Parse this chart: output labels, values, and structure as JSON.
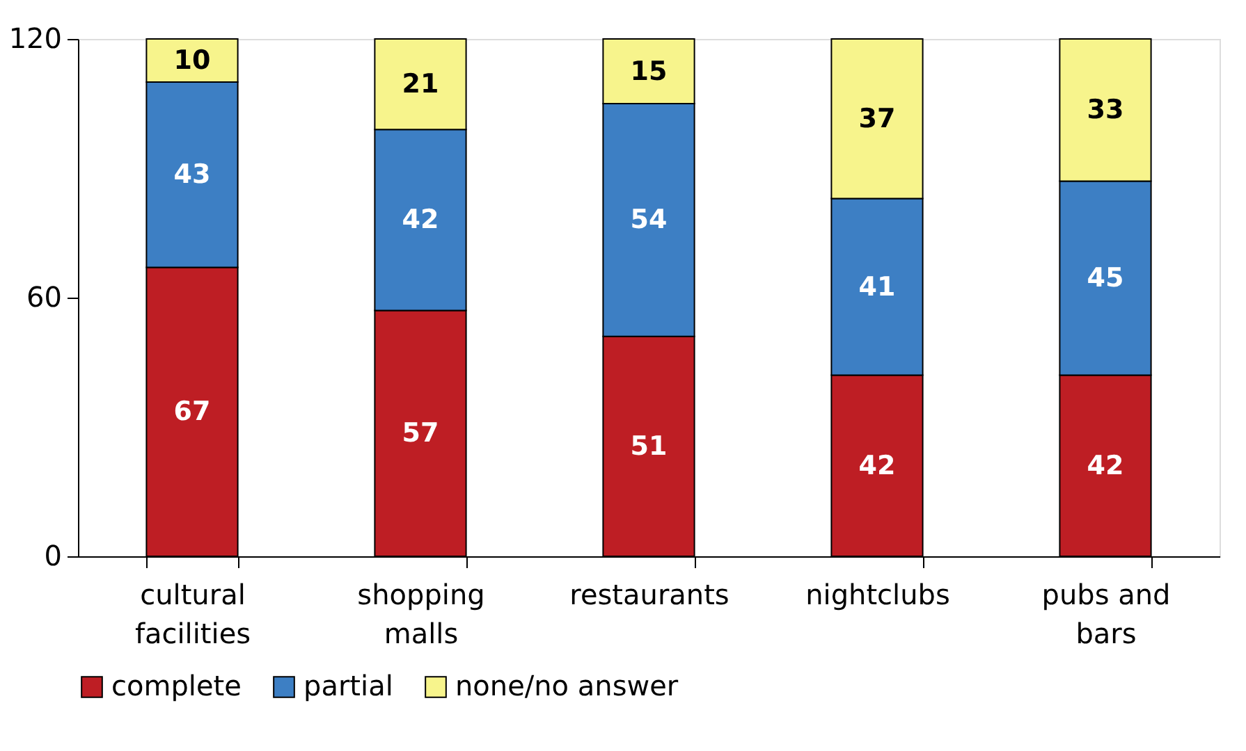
{
  "chart_data": {
    "type": "bar",
    "stacked": true,
    "categories": [
      "cultural facilities",
      "shopping malls",
      "restaurants",
      "nightclubs",
      "pubs and bars"
    ],
    "series": [
      {
        "name": "complete",
        "color": "#be1e24",
        "values": [
          67,
          57,
          51,
          42,
          42
        ]
      },
      {
        "name": "partial",
        "color": "#3d7fc4",
        "values": [
          43,
          42,
          54,
          41,
          45
        ]
      },
      {
        "name": "none/no answer",
        "color": "#f7f48c",
        "values": [
          10,
          21,
          15,
          37,
          33
        ]
      }
    ],
    "ylim": [
      0,
      120
    ],
    "yticks": [
      0,
      60,
      120
    ],
    "grid": false,
    "legend": "bottom",
    "data_labels": true
  }
}
